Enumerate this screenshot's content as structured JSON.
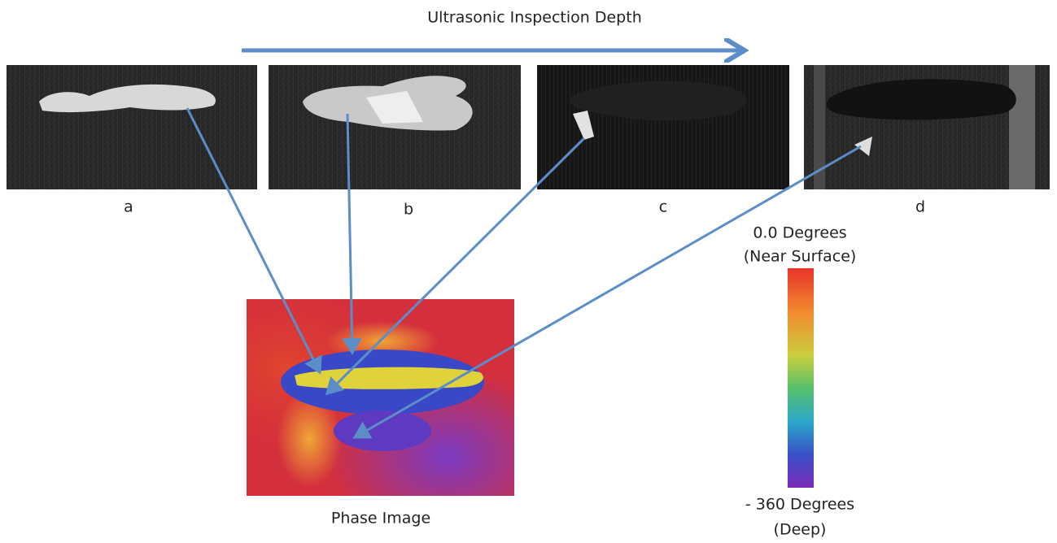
{
  "header": {
    "title": "Ultrasonic Inspection Depth"
  },
  "panels": [
    {
      "label": "a"
    },
    {
      "label": "b"
    },
    {
      "label": "c"
    },
    {
      "label": "d"
    }
  ],
  "phase_image": {
    "label": "Phase Image"
  },
  "colorbar": {
    "top_label": [
      "0.0 Degrees",
      "(Near Surface)"
    ],
    "bottom_label": [
      "- 360 Degrees",
      "(Deep)"
    ]
  }
}
